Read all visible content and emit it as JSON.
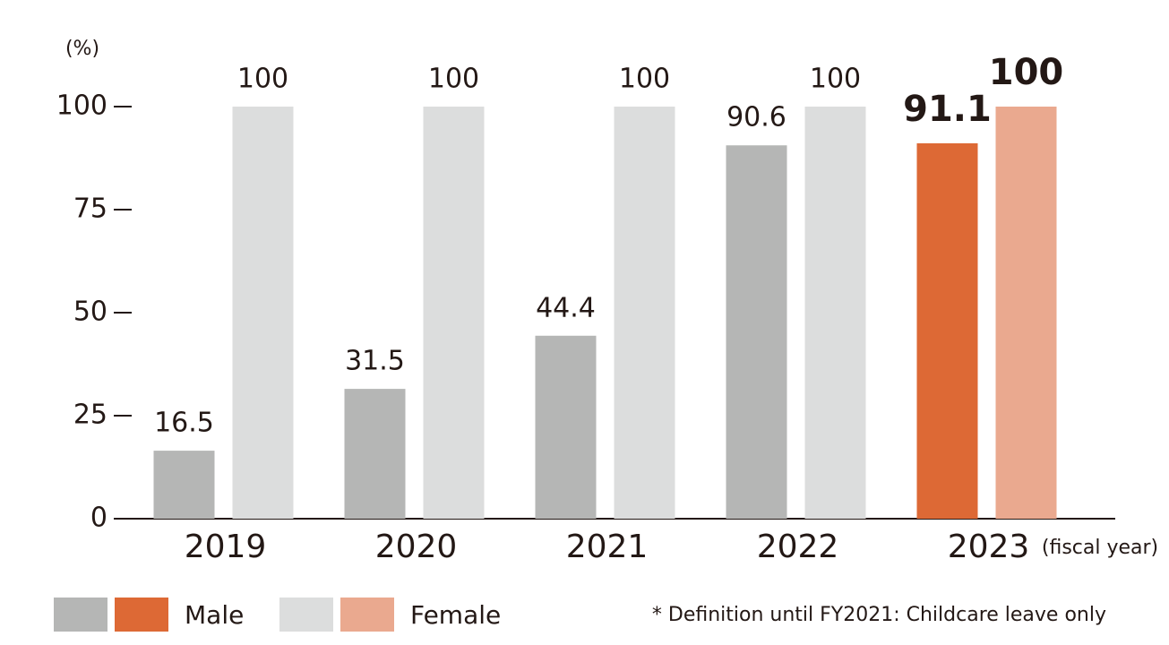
{
  "chart_data": {
    "type": "bar",
    "y_label": "(%)",
    "x_label": "(fiscal year)",
    "note": "* Definition until FY2021: Childcare leave only",
    "categories": [
      "2019",
      "2020",
      "2021",
      "2022",
      "2023"
    ],
    "series": [
      {
        "name": "Male",
        "colors": [
          "#b5b6b5",
          "#b5b6b5",
          "#b5b6b5",
          "#b5b6b5",
          "#dd6935"
        ],
        "values": [
          16.5,
          31.5,
          44.4,
          90.6,
          91.1
        ]
      },
      {
        "name": "Female",
        "colors": [
          "#dcdddd",
          "#dcdddd",
          "#dcdddd",
          "#dcdddd",
          "#eaa98f"
        ],
        "values": [
          100,
          100,
          100,
          100,
          100
        ]
      }
    ],
    "ylim": [
      0,
      100
    ],
    "yticks": [
      0,
      25,
      50,
      75,
      100
    ]
  }
}
